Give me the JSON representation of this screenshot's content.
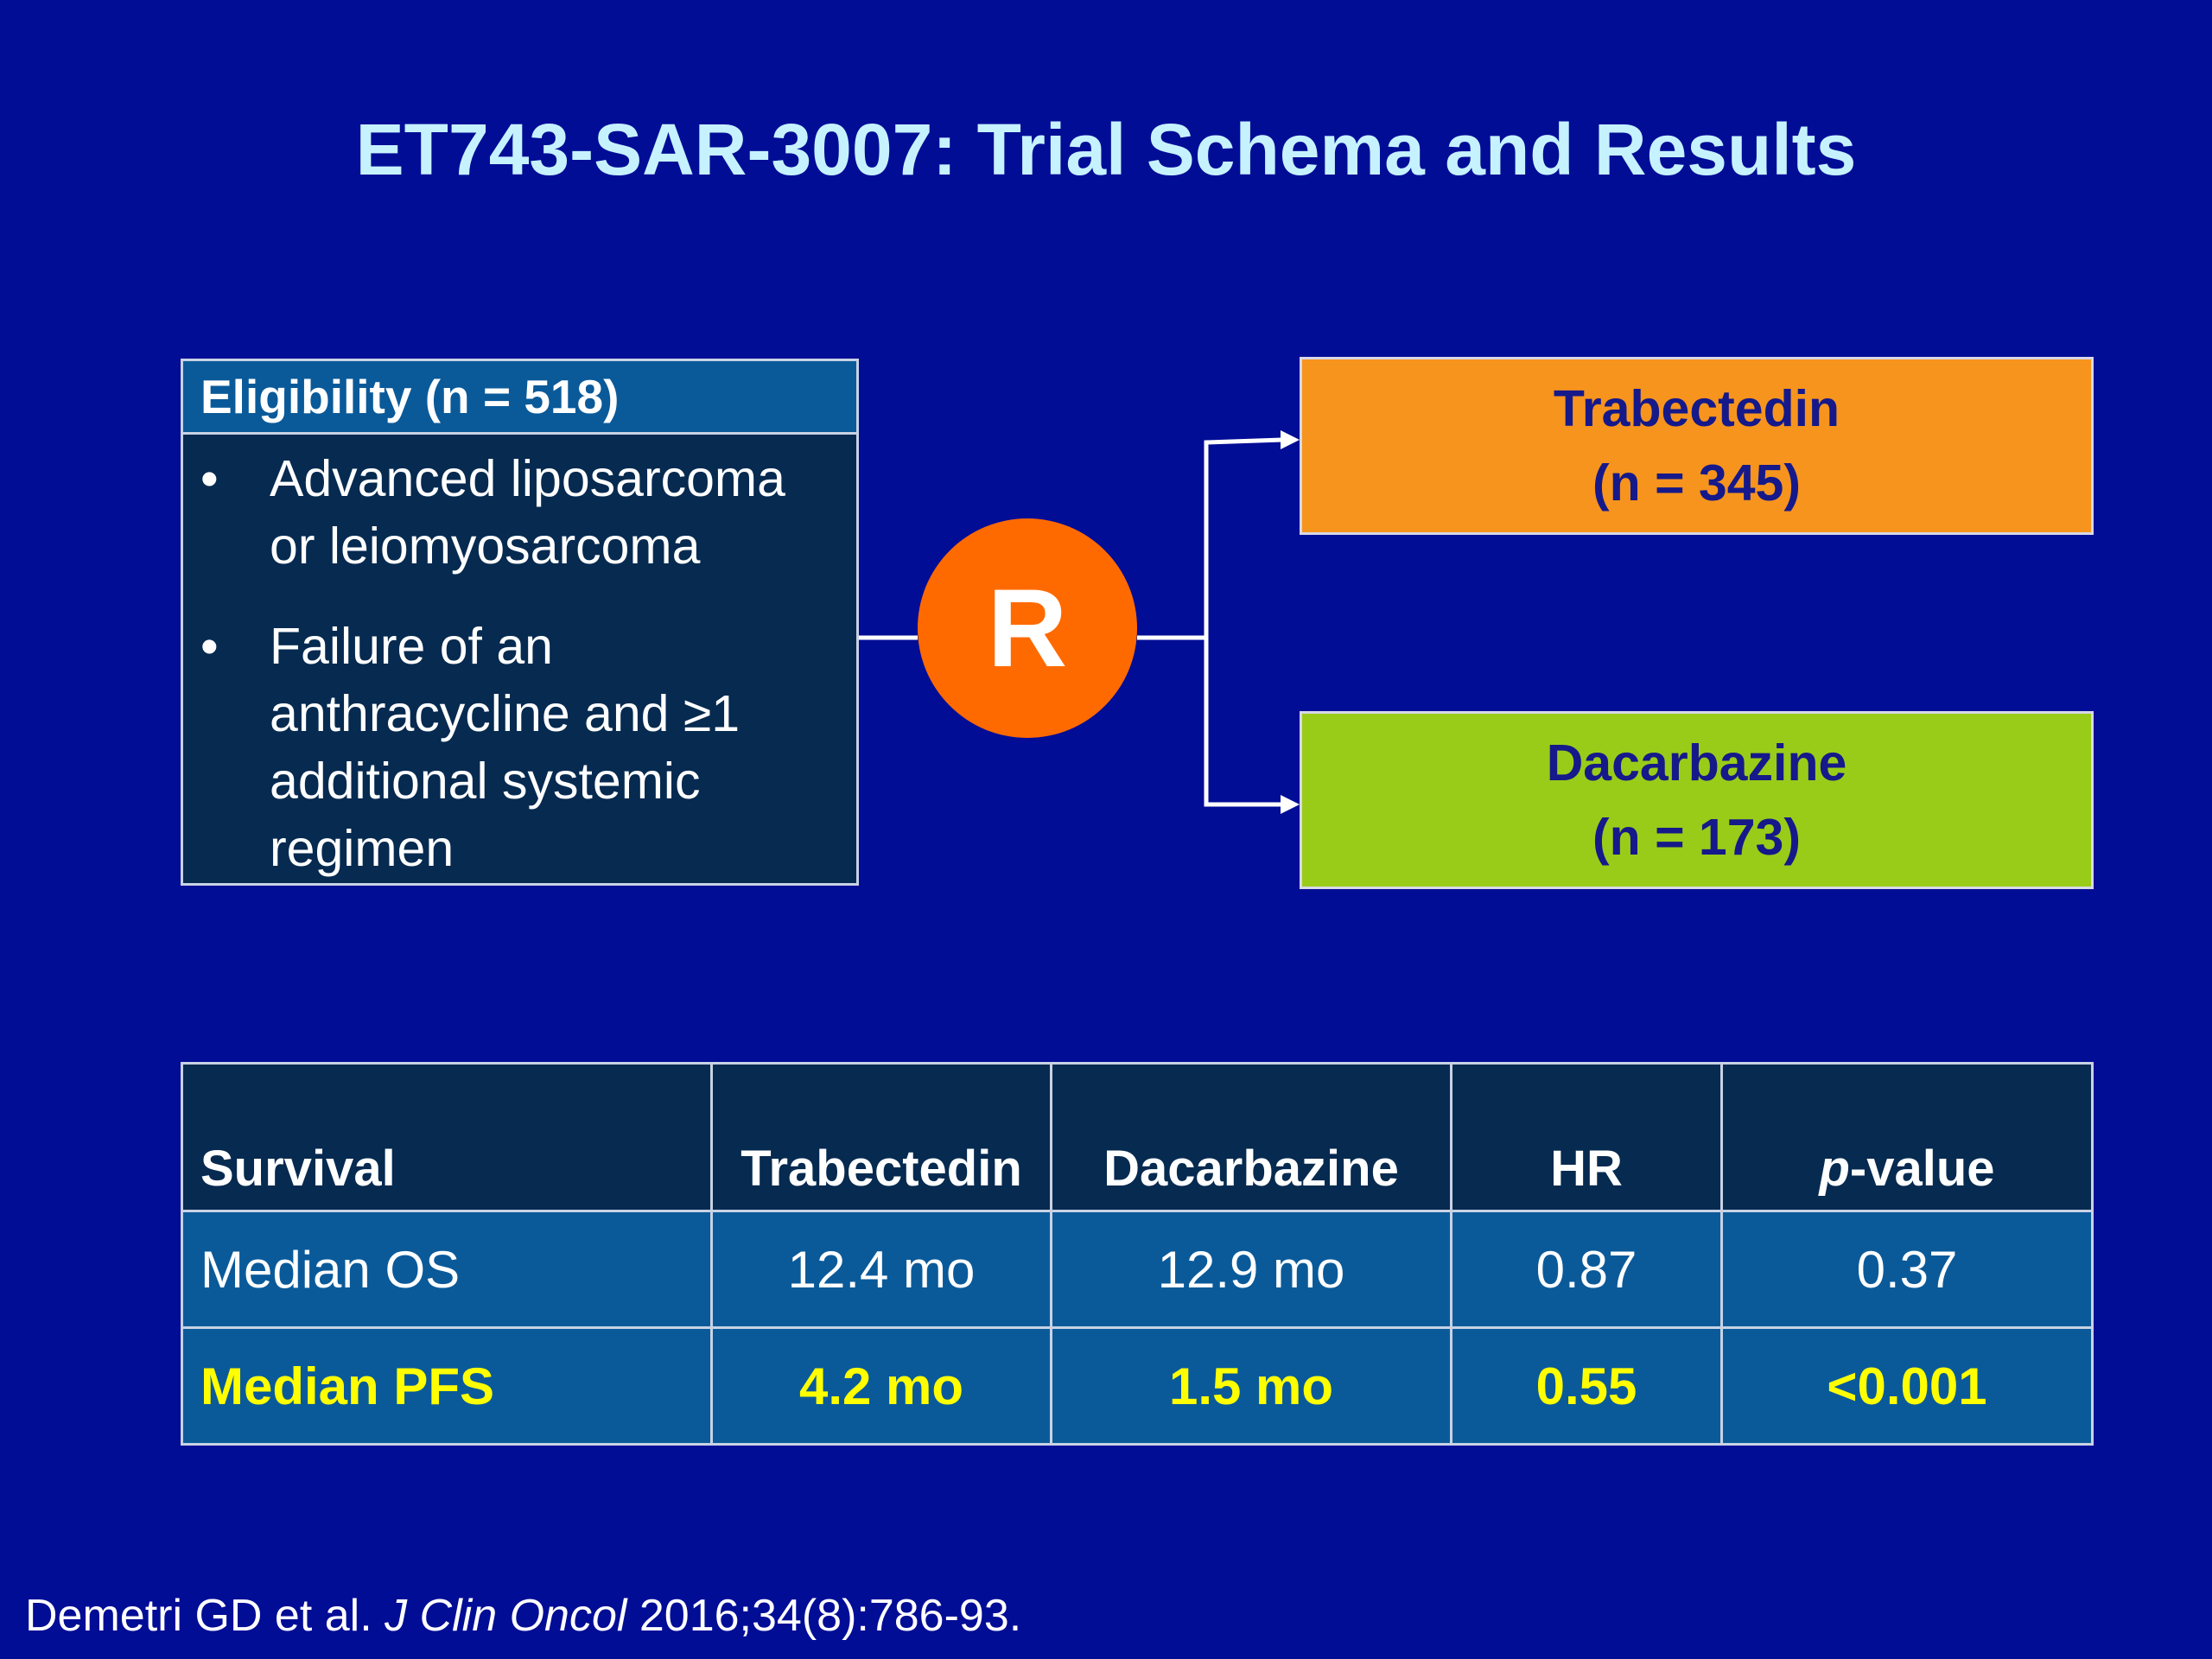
{
  "title": "ET743-SAR-3007: Trial Schema and Results",
  "eligibility": {
    "header": "Eligibility (n = 518)",
    "bullets": [
      "Advanced liposarcoma or leiomyosarcoma",
      "Failure of an anthracycline and ≥1 additional systemic regimen"
    ]
  },
  "randomization": "R",
  "arms": [
    {
      "name": "Trabectedin",
      "n": "(n = 345)"
    },
    {
      "name": "Dacarbazine",
      "n": "(n = 173)"
    }
  ],
  "table": {
    "header": [
      "Survival",
      "Trabectedin",
      "Dacarbazine",
      "HR",
      [
        "p",
        "-value"
      ]
    ],
    "rows": [
      [
        "Median OS",
        "12.4 mo",
        "12.9 mo",
        "0.87",
        "0.37"
      ],
      [
        "Median PFS",
        "4.2 mo",
        "1.5 mo",
        "0.55",
        "<0.001"
      ]
    ]
  },
  "citation": {
    "authors": "Demetri GD et al.",
    "journal": "J Clin Oncol",
    "reference": "2016;34(8):786-93."
  }
}
